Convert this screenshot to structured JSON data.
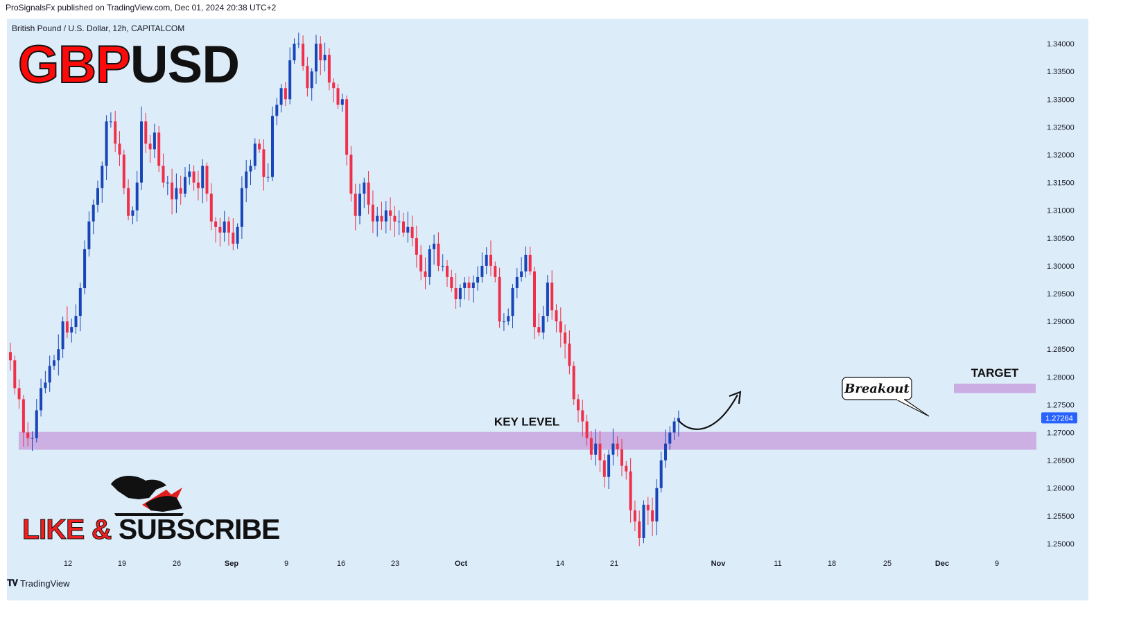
{
  "publisher_line": "ProSignalsFx published on TradingView.com, Dec 01, 2024 20:38 UTC+2",
  "instrument_line": "British Pound / U.S. Dollar, 12h, CAPITALCOM",
  "ticker": {
    "part1": "GBP",
    "part2": "USD"
  },
  "cta": {
    "part1": "LIKE",
    "part2": "&",
    "part3": "SUBSCRIBE"
  },
  "brand": {
    "icon": "tradingview-logo-icon",
    "name": "TradingView"
  },
  "colors": {
    "background": "#ddecf9",
    "bullish": "#1846b8",
    "bearish": "#f0304a",
    "zone": "#c9a6e0",
    "price_tag": "#2962ff"
  },
  "chart_data": {
    "type": "candlestick",
    "instrument": "British Pound / U.S. Dollar",
    "timeframe": "12h",
    "ylim": [
      1.2475,
      1.3435
    ],
    "y_ticks": [
      "1.34000",
      "1.33500",
      "1.33000",
      "1.32500",
      "1.32000",
      "1.31500",
      "1.31000",
      "1.30500",
      "1.30000",
      "1.29500",
      "1.29000",
      "1.28500",
      "1.28000",
      "1.27500",
      "1.27000",
      "1.26500",
      "1.26000",
      "1.25500",
      "1.25000"
    ],
    "x_ticks": [
      "12",
      "19",
      "26",
      "Sep",
      "9",
      "16",
      "23",
      "Oct",
      "14",
      "21",
      "Nov",
      "11",
      "18",
      "25",
      "Dec",
      "9"
    ],
    "last_price": "1.27264",
    "closes": [
      1.283,
      1.278,
      1.276,
      1.27,
      1.269,
      1.269,
      1.274,
      1.278,
      1.279,
      1.282,
      1.283,
      1.285,
      1.29,
      1.288,
      1.289,
      1.291,
      1.296,
      1.303,
      1.308,
      1.311,
      1.314,
      1.318,
      1.326,
      1.326,
      1.322,
      1.32,
      1.314,
      1.309,
      1.31,
      1.315,
      1.326,
      1.322,
      1.321,
      1.324,
      1.318,
      1.315,
      1.315,
      1.312,
      1.314,
      1.313,
      1.316,
      1.317,
      1.315,
      1.314,
      1.318,
      1.313,
      1.308,
      1.307,
      1.306,
      1.308,
      1.306,
      1.304,
      1.307,
      1.314,
      1.317,
      1.318,
      1.322,
      1.321,
      1.316,
      1.316,
      1.327,
      1.329,
      1.332,
      1.33,
      1.337,
      1.34,
      1.34,
      1.336,
      1.332,
      1.335,
      1.34,
      1.337,
      1.338,
      1.333,
      1.332,
      1.329,
      1.33,
      1.32,
      1.313,
      1.309,
      1.313,
      1.315,
      1.311,
      1.308,
      1.309,
      1.308,
      1.31,
      1.309,
      1.308,
      1.308,
      1.306,
      1.307,
      1.305,
      1.302,
      1.299,
      1.298,
      1.303,
      1.304,
      1.3,
      1.3,
      1.298,
      1.296,
      1.294,
      1.296,
      1.297,
      1.296,
      1.297,
      1.298,
      1.3,
      1.302,
      1.3,
      1.298,
      1.29,
      1.29,
      1.291,
      1.296,
      1.298,
      1.299,
      1.302,
      1.299,
      1.289,
      1.288,
      1.291,
      1.297,
      1.292,
      1.29,
      1.288,
      1.286,
      1.282,
      1.276,
      1.274,
      1.272,
      1.269,
      1.266,
      1.268,
      1.265,
      1.262,
      1.266,
      1.268,
      1.267,
      1.264,
      1.263,
      1.256,
      1.254,
      1.251,
      1.257,
      1.256,
      1.254,
      1.26,
      1.265,
      1.268,
      1.27,
      1.272,
      1.2726
    ]
  }
}
